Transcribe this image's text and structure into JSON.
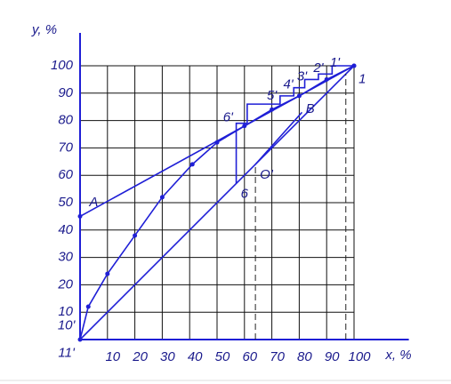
{
  "chart_data": {
    "type": "line",
    "x_label": "x, %",
    "y_label": "y, %",
    "xlim": [
      0,
      120
    ],
    "ylim": [
      0,
      112
    ],
    "xticks": [
      10,
      20,
      30,
      40,
      50,
      60,
      70,
      80,
      90,
      100
    ],
    "yticks": [
      10,
      20,
      30,
      40,
      50,
      60,
      70,
      80,
      90,
      100
    ],
    "grid": true,
    "color": "#1f1fd6",
    "series": [
      {
        "x": [
          0,
          3,
          10,
          20,
          30,
          41,
          50,
          60,
          70,
          80,
          90,
          100
        ],
        "values": [
          0,
          12,
          24,
          38,
          52,
          64,
          72,
          78,
          84,
          89,
          95,
          100
        ],
        "markers": true
      },
      {
        "x": [
          0,
          100
        ],
        "values": [
          0,
          100
        ]
      },
      {
        "x": [
          0,
          100
        ],
        "values": [
          45,
          100
        ],
        "markers": true
      },
      {
        "x": [
          64,
          81
        ],
        "values": [
          64,
          83
        ]
      },
      {
        "x": [
          100,
          92,
          92,
          87,
          87,
          82,
          82,
          78,
          78,
          73,
          73,
          61,
          61,
          57,
          57
        ],
        "values": [
          100,
          100,
          97,
          97,
          95,
          95,
          92,
          92,
          89,
          89,
          86,
          86,
          79,
          79,
          57
        ]
      },
      {
        "x": [
          64,
          64
        ],
        "values": [
          0,
          64
        ],
        "dashed": true
      },
      {
        "x": [
          97,
          97
        ],
        "values": [
          0,
          97
        ],
        "dashed": true
      }
    ],
    "annotations": [
      {
        "text": "A",
        "x": 5,
        "y": 50
      },
      {
        "text": "B",
        "x": 84,
        "y": 84
      },
      {
        "text": "O'",
        "x": 68,
        "y": 60
      },
      {
        "text": "1",
        "x": 103,
        "y": 95
      },
      {
        "text": "1'",
        "x": 93,
        "y": 101
      },
      {
        "text": "2'",
        "x": 87,
        "y": 99
      },
      {
        "text": "3'",
        "x": 81,
        "y": 96
      },
      {
        "text": "4'",
        "x": 76,
        "y": 93
      },
      {
        "text": "5'",
        "x": 70,
        "y": 89
      },
      {
        "text": "6'",
        "x": 54,
        "y": 81
      },
      {
        "text": "6",
        "x": 60,
        "y": 53
      },
      {
        "text": "10'",
        "x": -5,
        "y": 5
      },
      {
        "text": "11'",
        "x": -5,
        "y": -5
      }
    ]
  }
}
